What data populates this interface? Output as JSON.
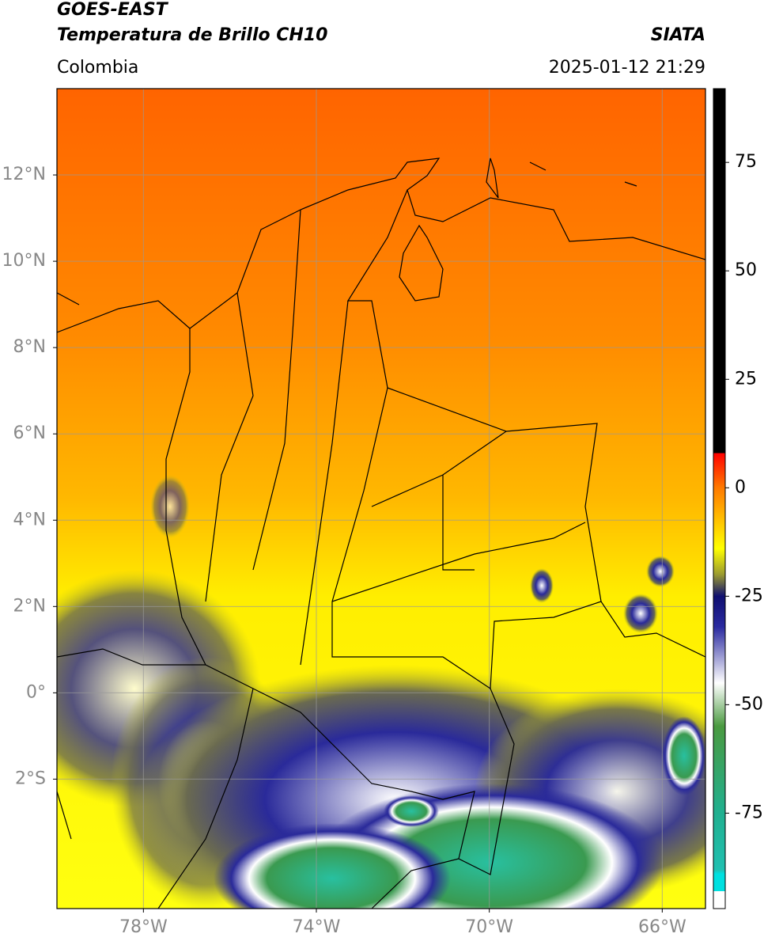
{
  "header": {
    "title": "GOES-EAST",
    "subtitle": "Temperatura de Brillo CH10",
    "source": "SIATA",
    "region": "Colombia",
    "datetime": "2025-01-12 21:29"
  },
  "map": {
    "xlim": [
      -80,
      -65
    ],
    "ylim": [
      -5,
      14
    ],
    "grid": true,
    "xticks": [
      {
        "value": -78,
        "label": "78°W"
      },
      {
        "value": -74,
        "label": "74°W"
      },
      {
        "value": -70,
        "label": "70°W"
      },
      {
        "value": -66,
        "label": "66°W"
      }
    ],
    "yticks": [
      {
        "value": 12,
        "label": "12°N"
      },
      {
        "value": 10,
        "label": "10°N"
      },
      {
        "value": 8,
        "label": "8°N"
      },
      {
        "value": 6,
        "label": "6°N"
      },
      {
        "value": 4,
        "label": "4°N"
      },
      {
        "value": 2,
        "label": "2°N"
      },
      {
        "value": 0,
        "label": "0°"
      },
      {
        "value": -2,
        "label": "2°S"
      }
    ]
  },
  "colorbar": {
    "clim": [
      -97,
      92
    ],
    "ticks": [
      75,
      50,
      25,
      0,
      -25,
      -50,
      -75
    ],
    "colormap": [
      {
        "value": 92,
        "color": "#000000"
      },
      {
        "value": 8,
        "color": "#000000"
      },
      {
        "value": 8,
        "color": "#ff0000"
      },
      {
        "value": 0,
        "color": "#ff7a00"
      },
      {
        "value": -14,
        "color": "#ffff00"
      },
      {
        "value": -20,
        "color": "#9a9a30"
      },
      {
        "value": -25,
        "color": "#101070"
      },
      {
        "value": -32,
        "color": "#2a2aa0"
      },
      {
        "value": -45,
        "color": "#ffffff"
      },
      {
        "value": -55,
        "color": "#4a9a40"
      },
      {
        "value": -75,
        "color": "#20b090"
      },
      {
        "value": -88,
        "color": "#20c0b0"
      },
      {
        "value": -89,
        "color": "#00e0e0"
      },
      {
        "value": -93,
        "color": "#00e0e0"
      },
      {
        "value": -93,
        "color": "#ffffff"
      },
      {
        "value": -97,
        "color": "#ffffff"
      }
    ]
  }
}
